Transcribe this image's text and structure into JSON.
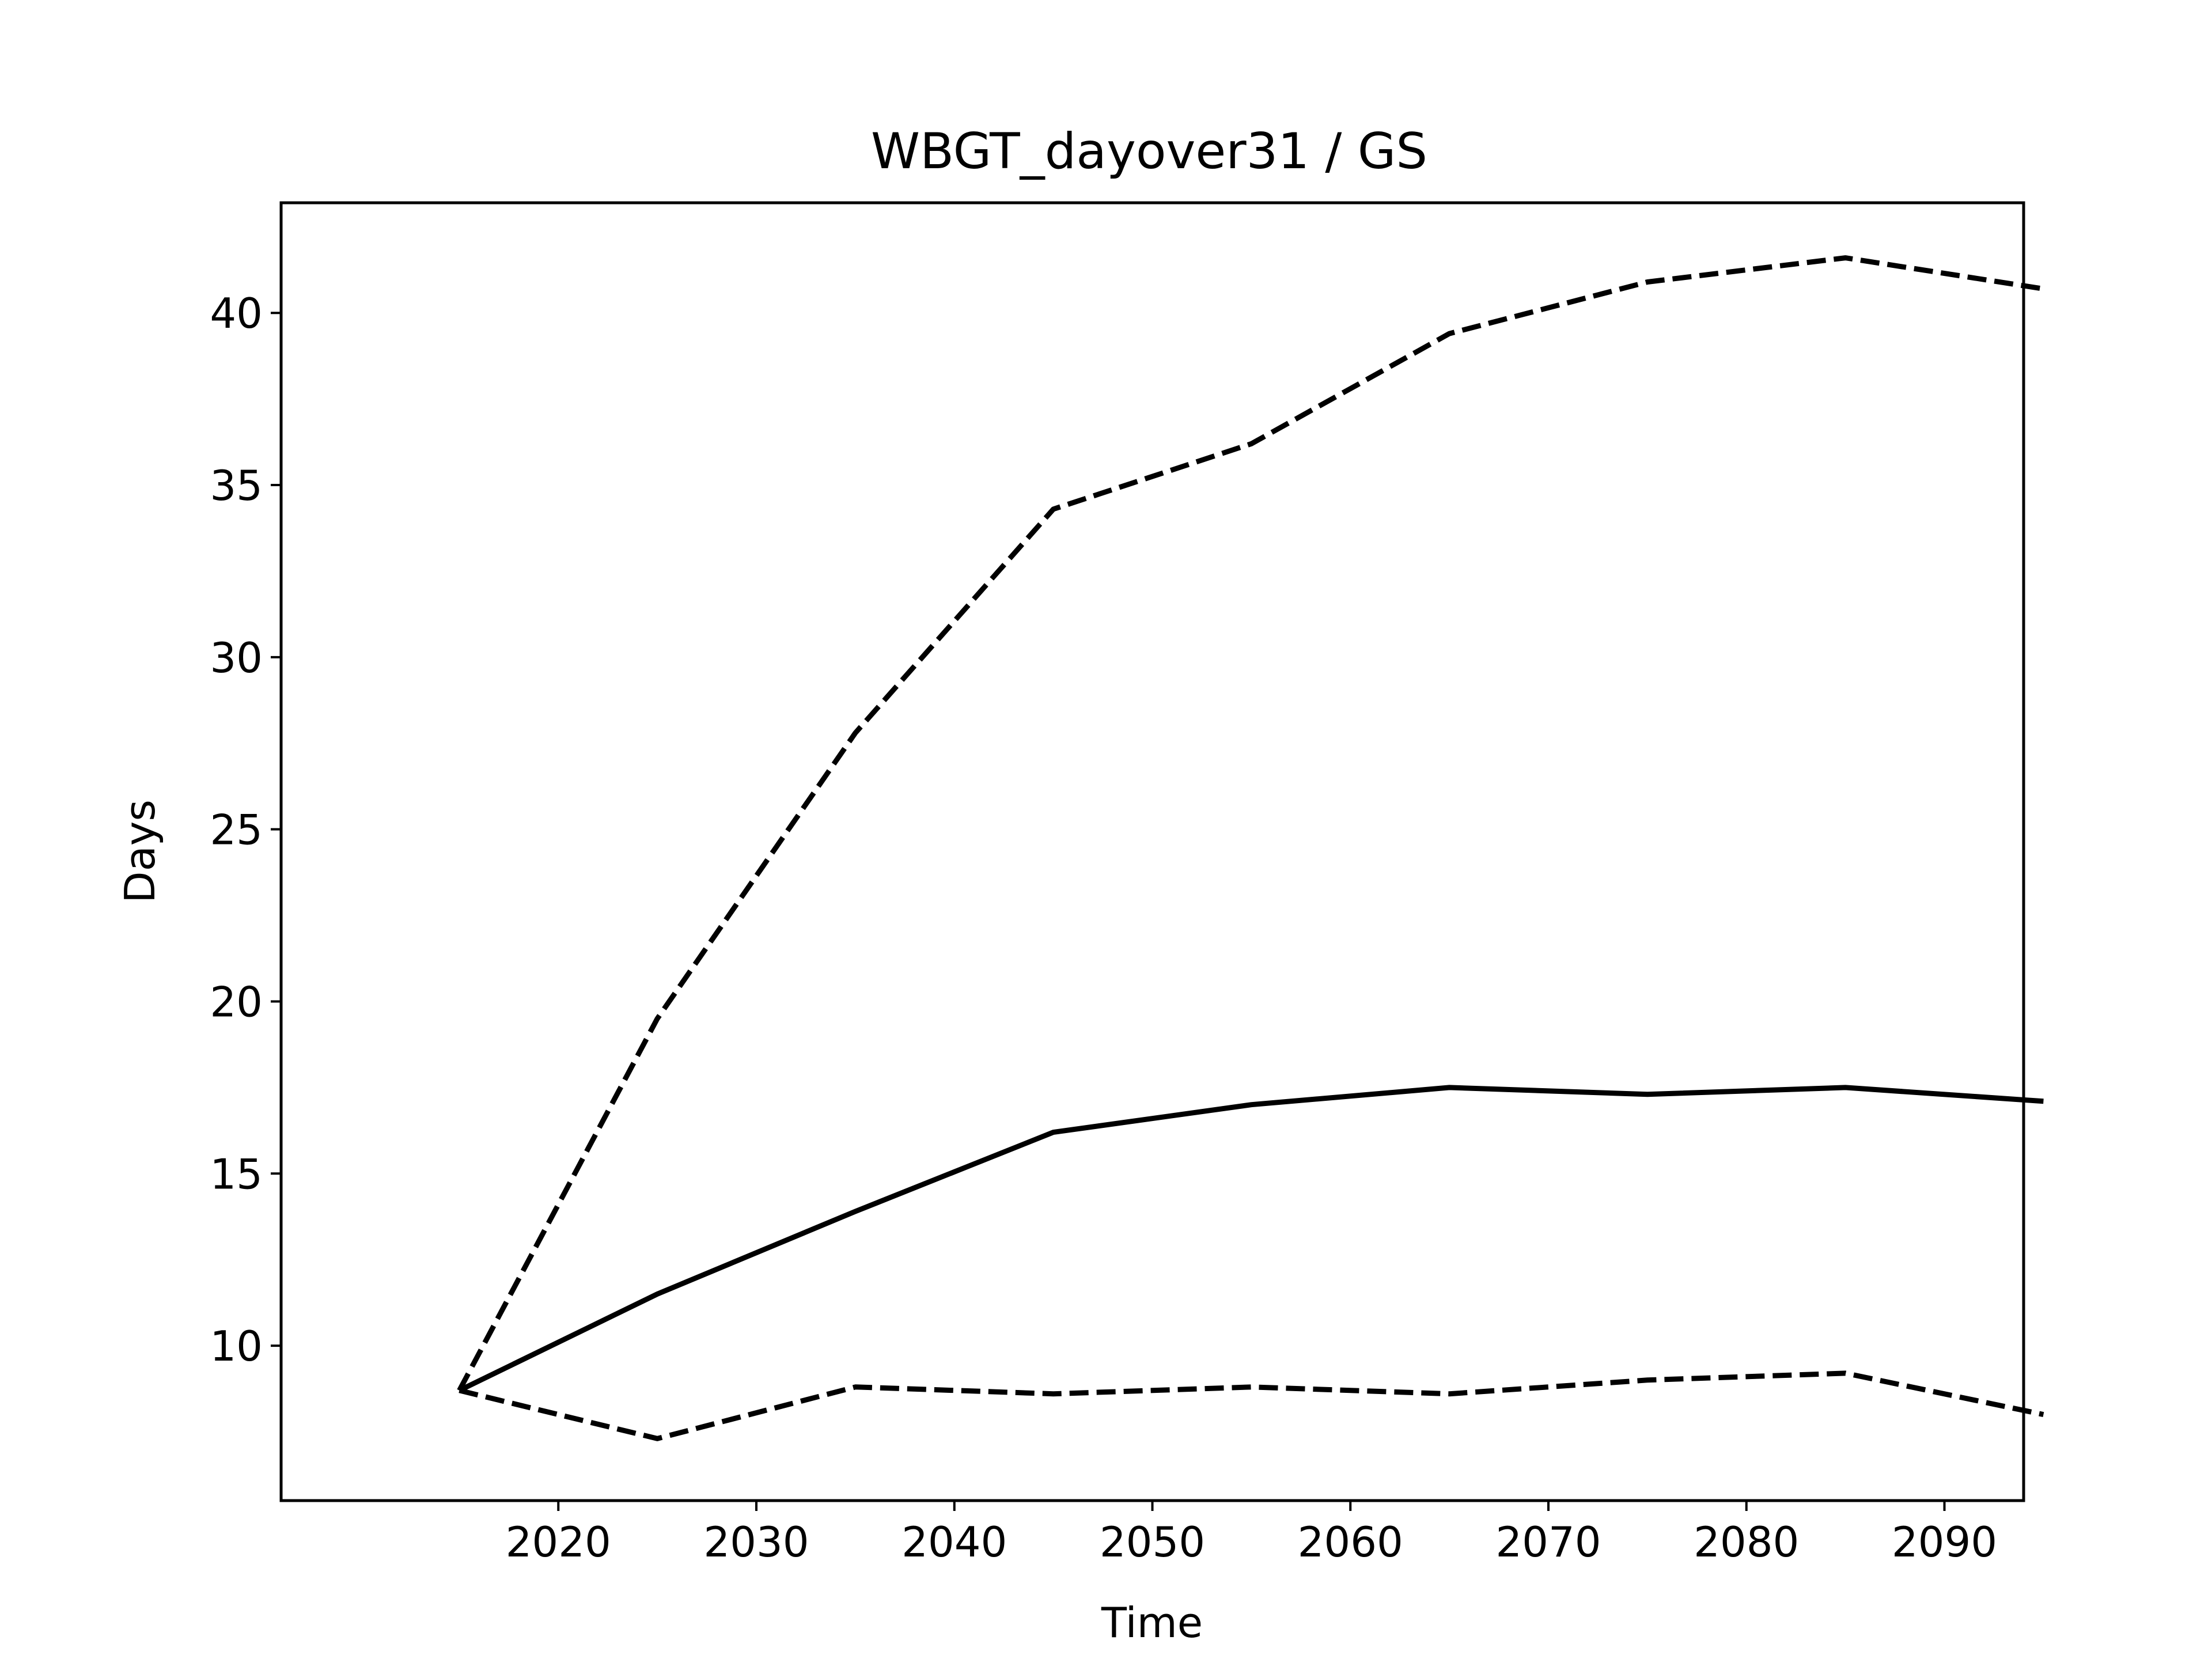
{
  "chart_data": {
    "type": "line",
    "title": "WBGT_dayover31 / GS",
    "xlabel": "Time",
    "ylabel": "Days",
    "x": [
      2015,
      2025,
      2035,
      2045,
      2055,
      2065,
      2075,
      2085,
      2095
    ],
    "xlim": [
      2006,
      2094
    ],
    "ylim": [
      5.5,
      43.2
    ],
    "xticks": [
      2020,
      2030,
      2040,
      2050,
      2060,
      2070,
      2080,
      2090
    ],
    "yticks": [
      10,
      15,
      20,
      25,
      30,
      35,
      40
    ],
    "grid": false,
    "series": [
      {
        "style": "dashed",
        "color": "#000000",
        "values": [
          8.7,
          19.5,
          27.8,
          34.3,
          36.2,
          39.4,
          40.9,
          41.6,
          40.7
        ]
      },
      {
        "style": "solid",
        "color": "#000000",
        "values": [
          8.7,
          11.5,
          13.9,
          16.2,
          17.0,
          17.5,
          17.3,
          17.5,
          17.1
        ]
      },
      {
        "style": "dashed",
        "color": "#000000",
        "values": [
          8.7,
          7.3,
          8.8,
          8.6,
          8.8,
          8.6,
          9.0,
          9.2,
          8.0
        ]
      }
    ]
  }
}
